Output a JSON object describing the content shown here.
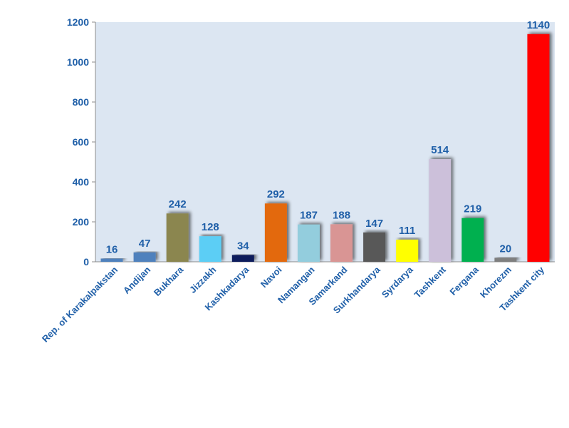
{
  "chart_data": {
    "type": "bar",
    "title": "",
    "xlabel": "",
    "ylabel": "",
    "ylim": [
      0,
      1200
    ],
    "yticks": [
      0,
      200,
      400,
      600,
      800,
      1000,
      1200
    ],
    "grid": false,
    "legend": "none",
    "plot_background": "#dce6f2",
    "label_color": "#1f5fa8",
    "categories": [
      "Rep. of Karakalpakstan",
      "Andijan",
      "Bukhara",
      "Jizzakh",
      "Kashkadarya",
      "Navoi",
      "Namangan",
      "Samarkand",
      "Surkhandarya",
      "Syrdarya",
      "Tashkent",
      "Fergana",
      "Khorezm",
      "Tashkent city"
    ],
    "values": [
      16,
      47,
      242,
      128,
      34,
      292,
      187,
      188,
      147,
      111,
      514,
      219,
      20,
      1140
    ],
    "colors": [
      "#4f81bd",
      "#4f81bd",
      "#8b8650",
      "#5bcef5",
      "#0d1f5c",
      "#e3690f",
      "#93cddd",
      "#d99594",
      "#595959",
      "#ffff00",
      "#ccc0da",
      "#00b050",
      "#7f7f7f",
      "#ff0000"
    ]
  }
}
